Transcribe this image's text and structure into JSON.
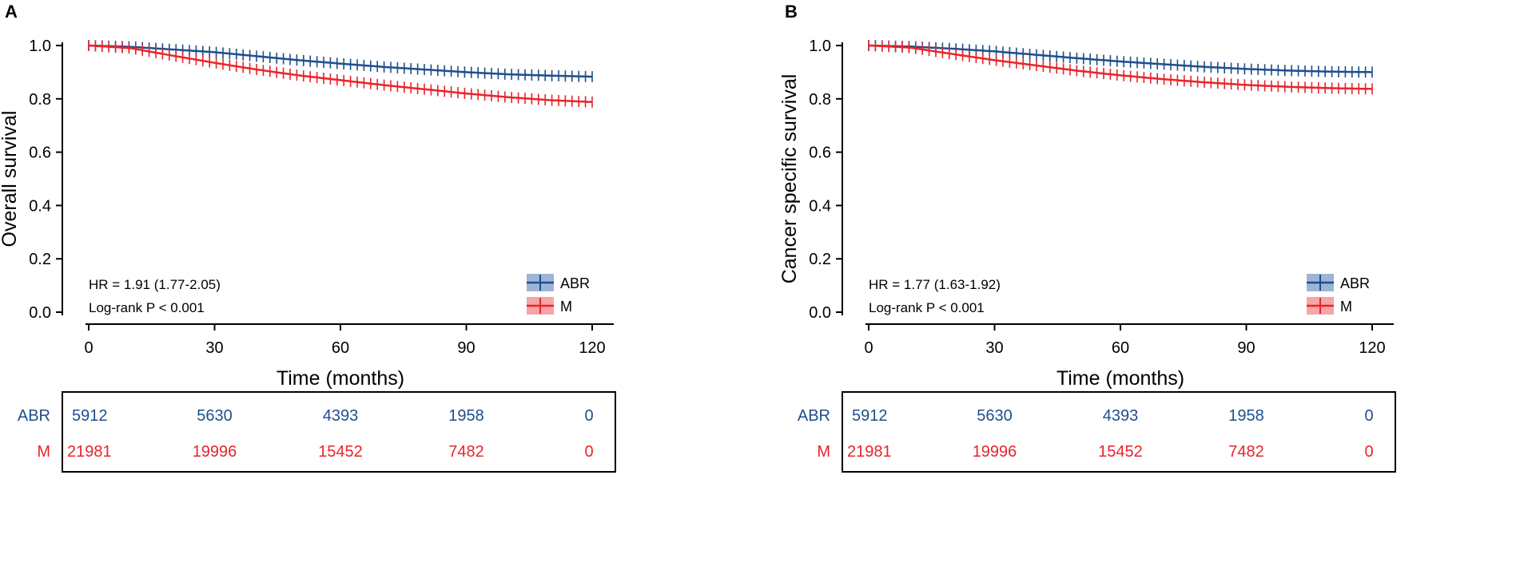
{
  "colors": {
    "abr": "#1F4E8C",
    "m": "#E8242B",
    "abr_fill": "#9DB4D6",
    "m_fill": "#F4A6A9",
    "axis": "#000000"
  },
  "chart_data": [
    {
      "panel": "A",
      "type": "line",
      "title": "",
      "xlabel": "Time (months)",
      "ylabel": "Overall survival",
      "xlim": [
        0,
        120
      ],
      "ylim": [
        0,
        1
      ],
      "xticks": [
        "0",
        "30",
        "60",
        "90",
        "120"
      ],
      "yticks": [
        "0.0",
        "0.2",
        "0.4",
        "0.6",
        "0.8",
        "1.0"
      ],
      "annotations": [
        "HR = 1.91 (1.77-2.05)",
        "Log-rank P < 0.001"
      ],
      "legend_position": "bottom-right",
      "series": [
        {
          "name": "ABR",
          "x": [
            0,
            10,
            20,
            30,
            40,
            50,
            60,
            70,
            80,
            90,
            100,
            110,
            120
          ],
          "values": [
            1.0,
            0.995,
            0.985,
            0.975,
            0.96,
            0.945,
            0.932,
            0.92,
            0.91,
            0.9,
            0.892,
            0.887,
            0.883
          ]
        },
        {
          "name": "M",
          "x": [
            0,
            10,
            20,
            30,
            40,
            50,
            60,
            70,
            80,
            90,
            100,
            110,
            120
          ],
          "values": [
            1.0,
            0.99,
            0.962,
            0.935,
            0.91,
            0.888,
            0.87,
            0.852,
            0.836,
            0.82,
            0.806,
            0.795,
            0.788
          ]
        }
      ],
      "risk_table": {
        "times": [
          0,
          30,
          60,
          90,
          120
        ],
        "rows": [
          {
            "name": "ABR",
            "counts": [
              "5912",
              "5630",
              "4393",
              "1958",
              "0"
            ]
          },
          {
            "name": "M",
            "counts": [
              "21981",
              "19996",
              "15452",
              "7482",
              "0"
            ]
          }
        ]
      }
    },
    {
      "panel": "B",
      "type": "line",
      "title": "",
      "xlabel": "Time (months)",
      "ylabel": "Cancer specific survival",
      "xlim": [
        0,
        120
      ],
      "ylim": [
        0,
        1
      ],
      "xticks": [
        "0",
        "30",
        "60",
        "90",
        "120"
      ],
      "yticks": [
        "0.0",
        "0.2",
        "0.4",
        "0.6",
        "0.8",
        "1.0"
      ],
      "annotations": [
        "HR = 1.77 (1.63-1.92)",
        "Log-rank P < 0.001"
      ],
      "legend_position": "bottom-right",
      "series": [
        {
          "name": "ABR",
          "x": [
            0,
            10,
            20,
            30,
            40,
            50,
            60,
            70,
            80,
            90,
            100,
            110,
            120
          ],
          "values": [
            1.0,
            0.996,
            0.988,
            0.978,
            0.965,
            0.952,
            0.94,
            0.93,
            0.92,
            0.912,
            0.906,
            0.902,
            0.9
          ]
        },
        {
          "name": "M",
          "x": [
            0,
            10,
            20,
            30,
            40,
            50,
            60,
            70,
            80,
            90,
            100,
            110,
            120
          ],
          "values": [
            1.0,
            0.992,
            0.968,
            0.945,
            0.925,
            0.905,
            0.888,
            0.874,
            0.862,
            0.852,
            0.845,
            0.84,
            0.837
          ]
        }
      ],
      "risk_table": {
        "times": [
          0,
          30,
          60,
          90,
          120
        ],
        "rows": [
          {
            "name": "ABR",
            "counts": [
              "5912",
              "5630",
              "4393",
              "1958",
              "0"
            ]
          },
          {
            "name": "M",
            "counts": [
              "21981",
              "19996",
              "15452",
              "7482",
              "0"
            ]
          }
        ]
      }
    }
  ]
}
